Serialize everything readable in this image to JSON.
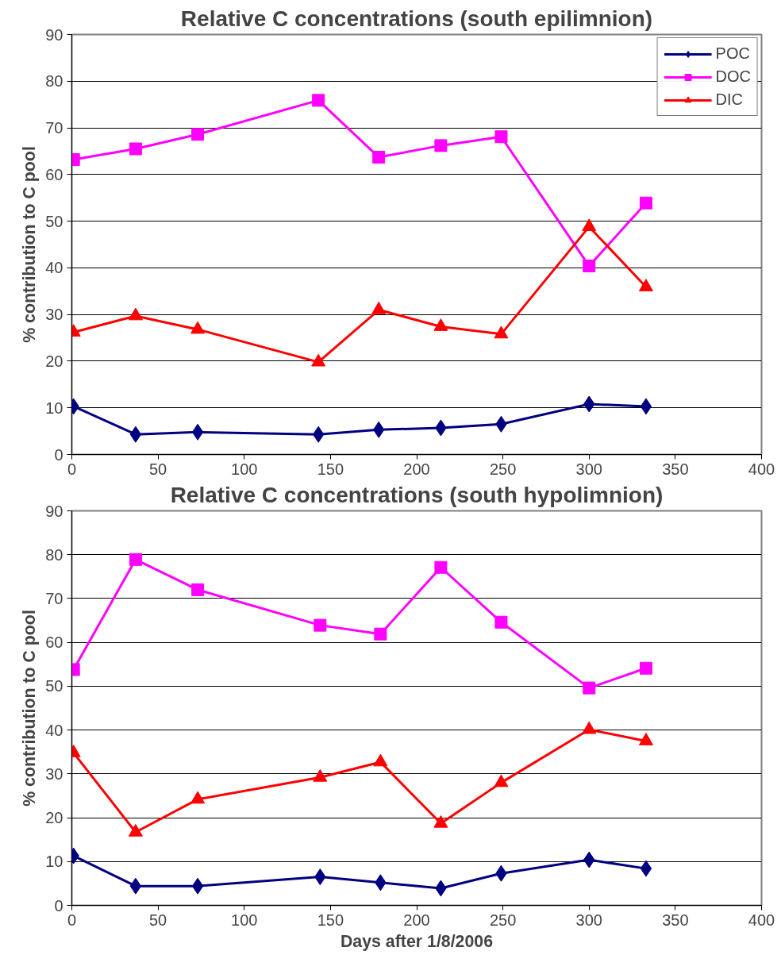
{
  "chart_data": [
    {
      "type": "line",
      "title": "Relative C concentrations (south epilimnion)",
      "ylabel": "% contribution to C pool",
      "x": [
        1,
        37,
        73,
        143,
        178,
        214,
        249,
        300,
        333
      ],
      "xlim": [
        0,
        400
      ],
      "xticks": [
        0,
        50,
        100,
        150,
        200,
        250,
        300,
        350,
        400
      ],
      "ylim": [
        0,
        90
      ],
      "yticks": [
        0,
        10,
        20,
        30,
        40,
        50,
        60,
        70,
        80,
        90
      ],
      "grid": "y",
      "legend": "top right",
      "series": [
        {
          "name": "POC",
          "color": "#000080",
          "marker": "diamond",
          "values": [
            10.3,
            4.3,
            4.8,
            4.3,
            5.3,
            5.7,
            6.5,
            10.8,
            10.3
          ]
        },
        {
          "name": "DOC",
          "color": "#ff00ff",
          "marker": "square",
          "values": [
            63.2,
            65.5,
            68.6,
            75.9,
            63.7,
            66.2,
            68.1,
            40.4,
            53.9
          ]
        },
        {
          "name": "DIC",
          "color": "#ff0000",
          "marker": "triangle",
          "values": [
            26.2,
            29.7,
            26.8,
            19.8,
            31.0,
            27.4,
            25.8,
            48.8,
            35.9
          ]
        }
      ]
    },
    {
      "type": "line",
      "title": "Relative C concentrations (south hypolimnion)",
      "xlabel": "Days after 1/8/2006",
      "ylabel": "% contribution to C pool",
      "x": [
        1,
        37,
        73,
        144,
        179,
        214,
        249,
        300,
        333
      ],
      "xlim": [
        0,
        400
      ],
      "xticks": [
        0,
        50,
        100,
        150,
        200,
        250,
        300,
        350,
        400
      ],
      "ylim": [
        0,
        90
      ],
      "yticks": [
        0,
        10,
        20,
        30,
        40,
        50,
        60,
        70,
        80,
        90
      ],
      "grid": "y",
      "series": [
        {
          "color": "#000080",
          "marker": "diamond",
          "values": [
            11.3,
            4.4,
            4.4,
            6.5,
            5.2,
            3.9,
            7.3,
            10.4,
            8.4
          ]
        },
        {
          "color": "#ff00ff",
          "marker": "square",
          "values": [
            53.8,
            78.9,
            72.0,
            63.9,
            61.9,
            77.1,
            64.6,
            49.6,
            54.1
          ]
        },
        {
          "color": "#ff0000",
          "marker": "triangle",
          "values": [
            34.8,
            16.7,
            24.2,
            29.2,
            32.7,
            18.7,
            28.0,
            40.1,
            37.5
          ]
        }
      ]
    }
  ]
}
